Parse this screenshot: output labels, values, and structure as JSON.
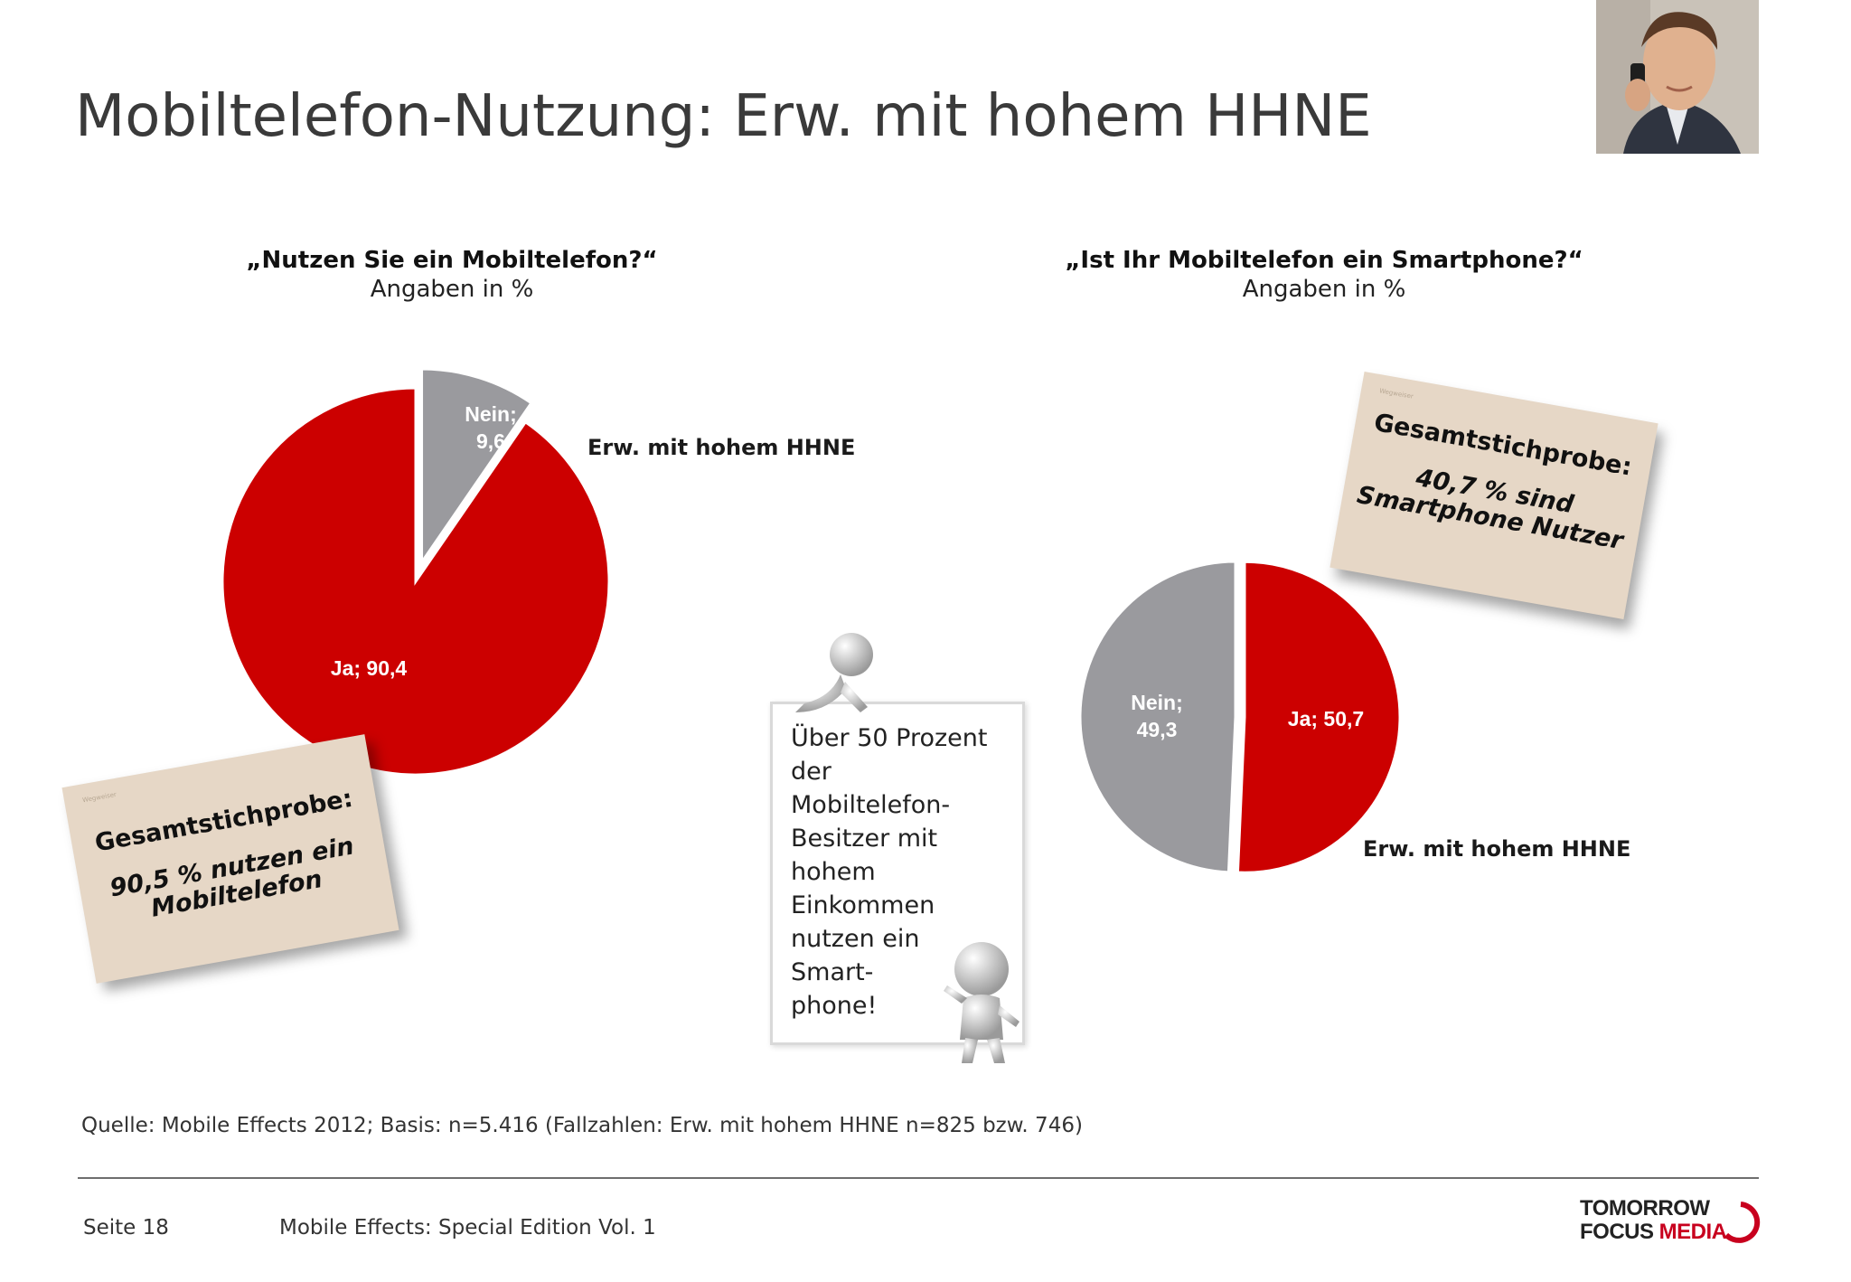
{
  "page": {
    "title": "Mobiltelefon-Nutzung: Erw. mit hohem HHNE",
    "source": "Quelle: Mobile Effects 2012; Basis: n=5.416 (Fallzahlen: Erw. mit hohem HHNE n=825 bzw. 746)",
    "page_number": "Seite 18",
    "edition": "Mobile Effects: Special Edition Vol. 1",
    "logo_line1": "TOMORROW",
    "logo_line2_a": "FOCUS",
    "logo_line2_b": "MEDIA"
  },
  "colors": {
    "ja": "#cc0000",
    "nein": "#9a9a9e",
    "note_bg": "#e6d7c6",
    "logo_red": "#c8001e"
  },
  "notes": {
    "left": {
      "tiny": "Wegweiser",
      "head": "Gesamtstichprobe:",
      "body_1": "90,5 % nutzen ein",
      "body_2": "Mobiltelefon"
    },
    "right": {
      "tiny": "Wegweiser",
      "head": "Gesamtstichprobe:",
      "body_1": "40,7 % sind",
      "body_2": "Smartphone Nutzer"
    }
  },
  "board": {
    "lines": [
      "Über 50 Prozent",
      "der",
      "Mobiltelefon-",
      "Besitzer mit",
      "hohem",
      "Einkommen",
      "nutzen ein",
      "Smart-",
      "phone!"
    ]
  },
  "chart_data": [
    {
      "type": "pie",
      "title": "„Nutzen Sie ein Mobiltelefon?“",
      "subtitle": "Angaben in %",
      "series_name": "Erw. mit hohem HHNE",
      "slices": [
        {
          "label": "Ja; 90,4",
          "name": "Ja",
          "value": 90.4,
          "color": "#cc0000"
        },
        {
          "label_1": "Nein;",
          "label_2": "9,6",
          "name": "Nein",
          "value": 9.6,
          "color": "#9a9a9e",
          "exploded": true
        }
      ]
    },
    {
      "type": "pie",
      "title": "„Ist Ihr Mobiltelefon ein Smartphone?“",
      "subtitle": "Angaben in %",
      "series_name": "Erw. mit hohem HHNE",
      "slices": [
        {
          "label": "Ja; 50,7",
          "name": "Ja",
          "value": 50.7,
          "color": "#cc0000",
          "exploded": true
        },
        {
          "label_1": "Nein;",
          "label_2": "49,3",
          "name": "Nein",
          "value": 49.3,
          "color": "#9a9a9e"
        }
      ]
    }
  ]
}
